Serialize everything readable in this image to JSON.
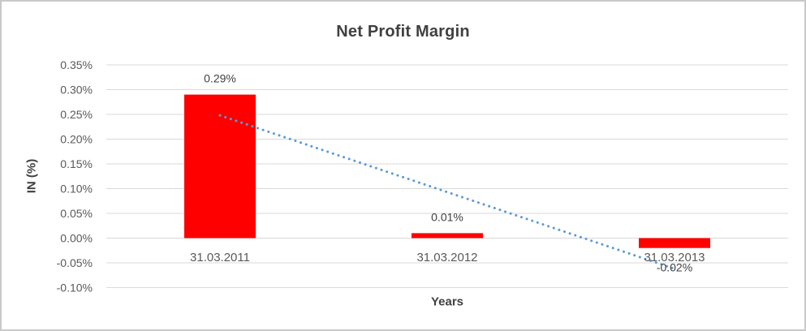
{
  "chart_data": {
    "type": "bar",
    "title": "Net Profit Margin",
    "xlabel": "Years",
    "ylabel": "IN (%)",
    "categories": [
      "31.03.2011",
      "31.03.2012",
      "31.03.2013"
    ],
    "values": [
      0.29,
      0.01,
      -0.02
    ],
    "data_labels": [
      "0.29%",
      "0.01%",
      "-0.02%"
    ],
    "unit": "%",
    "ylim": [
      -0.1,
      0.35
    ],
    "yticks": [
      {
        "value": 0.35,
        "label": "0.35%"
      },
      {
        "value": 0.3,
        "label": "0.30%"
      },
      {
        "value": 0.25,
        "label": "0.25%"
      },
      {
        "value": 0.2,
        "label": "0.20%"
      },
      {
        "value": 0.15,
        "label": "0.15%"
      },
      {
        "value": 0.1,
        "label": "0.10%"
      },
      {
        "value": 0.05,
        "label": "0.05%"
      },
      {
        "value": 0.0,
        "label": "0.00%"
      },
      {
        "value": -0.05,
        "label": "-0.05%"
      },
      {
        "value": -0.1,
        "label": "-0.10%"
      }
    ],
    "grid": true,
    "legend": "none",
    "trendline": {
      "style": "dotted",
      "start_value": 0.248,
      "end_value": -0.062
    },
    "colors": {
      "bar": "#ff0000",
      "trendline": "#5b9bd5",
      "gridline": "#d9d9d9",
      "title_text": "#404040",
      "tick_text": "#595959",
      "frame_border": "#c9c9c9"
    }
  }
}
